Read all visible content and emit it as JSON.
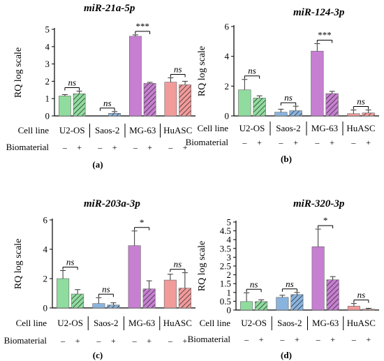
{
  "figure": {
    "row_labels": {
      "cell_line": "Cell line",
      "biomaterial": "Biomaterial"
    },
    "minus": "–",
    "plus": "+"
  },
  "chart_data": [
    {
      "type": "bar",
      "title": "miR-21a-5p",
      "panel_label": "(a)",
      "ylabel": "RQ log scale",
      "ylim": [
        0,
        5
      ],
      "yticks": [
        "0",
        "1",
        "2",
        "3",
        "4",
        "5"
      ],
      "categories": [
        "U2-OS",
        "Saos-2",
        "MG-63",
        "HuASC"
      ],
      "colors": [
        "#8fdc9e",
        "#8ab4de",
        "#c77fd1",
        "#f29b9b"
      ],
      "values_without": [
        1.15,
        0.0,
        4.6,
        1.95
      ],
      "errors_without": [
        0.08,
        0.0,
        0.08,
        0.25
      ],
      "values_with": [
        1.28,
        0.15,
        1.88,
        1.8
      ],
      "errors_with": [
        0.15,
        0.1,
        0.06,
        0.2
      ],
      "significance": [
        "ns",
        "ns",
        "***",
        "ns"
      ]
    },
    {
      "type": "bar",
      "title": "miR-124-3p",
      "panel_label": "(b)",
      "ylabel": "RQ log scale",
      "ylim": [
        0,
        6
      ],
      "yticks": [
        "0",
        "2",
        "4",
        "6"
      ],
      "categories": [
        "U2-OS",
        "Saos-2",
        "MG-63",
        "HuASC"
      ],
      "colors": [
        "#8fdc9e",
        "#8ab4de",
        "#c77fd1",
        "#f29b9b"
      ],
      "values_without": [
        1.75,
        0.25,
        4.35,
        0.15
      ],
      "errors_without": [
        0.7,
        0.2,
        0.5,
        0.25
      ],
      "values_with": [
        1.2,
        0.35,
        1.5,
        0.2
      ],
      "errors_with": [
        0.15,
        0.3,
        0.15,
        0.2
      ],
      "significance": [
        "ns",
        "ns",
        "***",
        "ns"
      ]
    },
    {
      "type": "bar",
      "title": "miR-203a-3p",
      "panel_label": "(c)",
      "ylabel": "RQ log scale",
      "ylim": [
        0,
        6
      ],
      "yticks": [
        "0",
        "2",
        "4",
        "6"
      ],
      "categories": [
        "U2-OS",
        "Saos-2",
        "MG-63",
        "HuASC"
      ],
      "colors": [
        "#8fdc9e",
        "#8ab4de",
        "#c77fd1",
        "#f29b9b"
      ],
      "values_without": [
        2.0,
        0.3,
        4.25,
        1.9
      ],
      "errors_without": [
        0.55,
        0.4,
        1.0,
        0.4
      ],
      "values_with": [
        0.95,
        0.2,
        1.3,
        1.35
      ],
      "errors_with": [
        0.3,
        0.15,
        0.55,
        1.05
      ],
      "significance": [
        "ns",
        "ns",
        "*",
        "ns"
      ]
    },
    {
      "type": "bar",
      "title": "miR-320-3p",
      "panel_label": "(d)",
      "ylabel": "RQ log scale",
      "ylim": [
        0,
        5
      ],
      "yticks": [
        "0",
        "0.5",
        "1",
        "1.5",
        "2",
        "2.5",
        "3",
        "3.5",
        "4",
        "4.5",
        "5"
      ],
      "categories": [
        "U2-OS",
        "Saos-2",
        "MG-63",
        "HuASC"
      ],
      "colors": [
        "#8fdc9e",
        "#8ab4de",
        "#c77fd1",
        "#f29b9b"
      ],
      "values_without": [
        0.48,
        0.72,
        3.6,
        0.22
      ],
      "errors_without": [
        0.5,
        0.12,
        1.0,
        0.15
      ],
      "values_with": [
        0.48,
        0.88,
        1.72,
        0.05
      ],
      "errors_with": [
        0.1,
        0.12,
        0.18,
        0.05
      ],
      "significance": [
        "ns",
        "ns",
        "*",
        "ns"
      ]
    }
  ]
}
